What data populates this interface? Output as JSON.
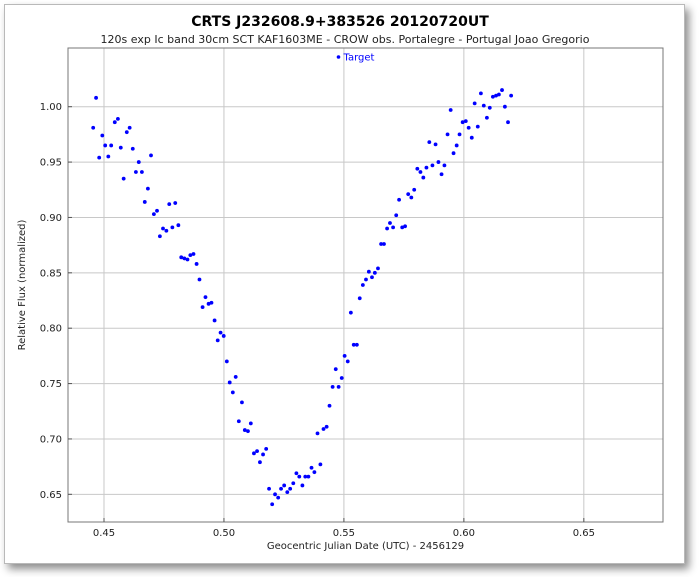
{
  "chart_data": {
    "type": "scatter",
    "title": "CRTS J232608.9+383526  20120720UT",
    "subtitle": "120s exp Ic band 30cm SCT KAF1603ME - CROW obs. Portalegre - Portugal  Joao Gregorio",
    "xlabel": "Geocentric Julian Date (UTC) - 2456129",
    "ylabel": "Relative Flux (normalized)",
    "xlim": [
      0.435,
      0.683
    ],
    "ylim": [
      0.625,
      1.053
    ],
    "xticks": [
      0.45,
      0.5,
      0.55,
      0.6,
      0.65
    ],
    "xtick_labels": [
      "0.45",
      "0.50",
      "0.55",
      "0.60",
      "0.65"
    ],
    "yticks": [
      0.65,
      0.7,
      0.75,
      0.8,
      0.85,
      0.9,
      0.95,
      1.0
    ],
    "ytick_labels": [
      "0.65",
      "0.70",
      "0.75",
      "0.80",
      "0.85",
      "0.90",
      "0.95",
      "1.00"
    ],
    "grid": true,
    "legend_position": "top-center",
    "series": [
      {
        "name": "Target",
        "color": "#0000ff",
        "points": [
          [
            0.4455,
            0.981
          ],
          [
            0.4467,
            1.008
          ],
          [
            0.448,
            0.954
          ],
          [
            0.4493,
            0.974
          ],
          [
            0.4505,
            0.965
          ],
          [
            0.4518,
            0.955
          ],
          [
            0.453,
            0.965
          ],
          [
            0.4545,
            0.986
          ],
          [
            0.4558,
            0.989
          ],
          [
            0.457,
            0.963
          ],
          [
            0.4582,
            0.935
          ],
          [
            0.4595,
            0.977
          ],
          [
            0.4607,
            0.981
          ],
          [
            0.462,
            0.962
          ],
          [
            0.4633,
            0.941
          ],
          [
            0.4645,
            0.95
          ],
          [
            0.4658,
            0.941
          ],
          [
            0.467,
            0.914
          ],
          [
            0.4683,
            0.926
          ],
          [
            0.4696,
            0.956
          ],
          [
            0.4708,
            0.903
          ],
          [
            0.4721,
            0.906
          ],
          [
            0.4733,
            0.883
          ],
          [
            0.4746,
            0.89
          ],
          [
            0.476,
            0.888
          ],
          [
            0.4772,
            0.912
          ],
          [
            0.4785,
            0.891
          ],
          [
            0.4797,
            0.913
          ],
          [
            0.481,
            0.893
          ],
          [
            0.4822,
            0.864
          ],
          [
            0.4835,
            0.863
          ],
          [
            0.4848,
            0.862
          ],
          [
            0.486,
            0.866
          ],
          [
            0.4873,
            0.867
          ],
          [
            0.4886,
            0.858
          ],
          [
            0.4898,
            0.844
          ],
          [
            0.4911,
            0.819
          ],
          [
            0.4923,
            0.828
          ],
          [
            0.4936,
            0.822
          ],
          [
            0.4948,
            0.823
          ],
          [
            0.4961,
            0.807
          ],
          [
            0.4974,
            0.789
          ],
          [
            0.4986,
            0.796
          ],
          [
            0.4999,
            0.793
          ],
          [
            0.5012,
            0.77
          ],
          [
            0.5024,
            0.751
          ],
          [
            0.5037,
            0.742
          ],
          [
            0.5049,
            0.756
          ],
          [
            0.5062,
            0.716
          ],
          [
            0.5075,
            0.733
          ],
          [
            0.5087,
            0.708
          ],
          [
            0.51,
            0.707
          ],
          [
            0.5112,
            0.714
          ],
          [
            0.5125,
            0.687
          ],
          [
            0.5138,
            0.689
          ],
          [
            0.515,
            0.679
          ],
          [
            0.5163,
            0.686
          ],
          [
            0.5176,
            0.691
          ],
          [
            0.5188,
            0.655
          ],
          [
            0.5201,
            0.641
          ],
          [
            0.5213,
            0.65
          ],
          [
            0.5226,
            0.647
          ],
          [
            0.5238,
            0.655
          ],
          [
            0.5251,
            0.658
          ],
          [
            0.5264,
            0.652
          ],
          [
            0.5276,
            0.655
          ],
          [
            0.5289,
            0.66
          ],
          [
            0.5302,
            0.669
          ],
          [
            0.5314,
            0.666
          ],
          [
            0.5327,
            0.658
          ],
          [
            0.5339,
            0.666
          ],
          [
            0.5352,
            0.666
          ],
          [
            0.5365,
            0.674
          ],
          [
            0.5377,
            0.67
          ],
          [
            0.539,
            0.705
          ],
          [
            0.5402,
            0.677
          ],
          [
            0.5415,
            0.709
          ],
          [
            0.5428,
            0.711
          ],
          [
            0.544,
            0.73
          ],
          [
            0.5453,
            0.747
          ],
          [
            0.5466,
            0.763
          ],
          [
            0.5478,
            0.747
          ],
          [
            0.5491,
            0.755
          ],
          [
            0.5503,
            0.775
          ],
          [
            0.5516,
            0.77
          ],
          [
            0.5529,
            0.814
          ],
          [
            0.5541,
            0.785
          ],
          [
            0.5554,
            0.785
          ],
          [
            0.5566,
            0.827
          ],
          [
            0.5579,
            0.839
          ],
          [
            0.5592,
            0.844
          ],
          [
            0.5604,
            0.851
          ],
          [
            0.5617,
            0.846
          ],
          [
            0.5629,
            0.85
          ],
          [
            0.5642,
            0.854
          ],
          [
            0.5655,
            0.876
          ],
          [
            0.5667,
            0.876
          ],
          [
            0.568,
            0.89
          ],
          [
            0.5692,
            0.895
          ],
          [
            0.5705,
            0.891
          ],
          [
            0.5718,
            0.902
          ],
          [
            0.573,
            0.916
          ],
          [
            0.5743,
            0.891
          ],
          [
            0.5755,
            0.892
          ],
          [
            0.5768,
            0.921
          ],
          [
            0.5781,
            0.918
          ],
          [
            0.5793,
            0.925
          ],
          [
            0.5806,
            0.944
          ],
          [
            0.5819,
            0.941
          ],
          [
            0.5831,
            0.936
          ],
          [
            0.5844,
            0.945
          ],
          [
            0.5856,
            0.968
          ],
          [
            0.5869,
            0.947
          ],
          [
            0.5882,
            0.966
          ],
          [
            0.5894,
            0.95
          ],
          [
            0.5907,
            0.939
          ],
          [
            0.5919,
            0.947
          ],
          [
            0.5932,
            0.975
          ],
          [
            0.5945,
            0.997
          ],
          [
            0.5957,
            0.958
          ],
          [
            0.597,
            0.965
          ],
          [
            0.5982,
            0.975
          ],
          [
            0.5995,
            0.986
          ],
          [
            0.6008,
            0.987
          ],
          [
            0.602,
            0.981
          ],
          [
            0.6033,
            0.972
          ],
          [
            0.6045,
            1.003
          ],
          [
            0.6058,
            0.982
          ],
          [
            0.6071,
            1.012
          ],
          [
            0.6083,
            1.001
          ],
          [
            0.6096,
            0.99
          ],
          [
            0.6108,
            0.999
          ],
          [
            0.6121,
            1.009
          ],
          [
            0.6134,
            1.01
          ],
          [
            0.6146,
            1.011
          ],
          [
            0.6159,
            1.015
          ],
          [
            0.6171,
            1.0
          ],
          [
            0.6184,
            0.986
          ],
          [
            0.6197,
            1.01
          ]
        ]
      }
    ]
  }
}
